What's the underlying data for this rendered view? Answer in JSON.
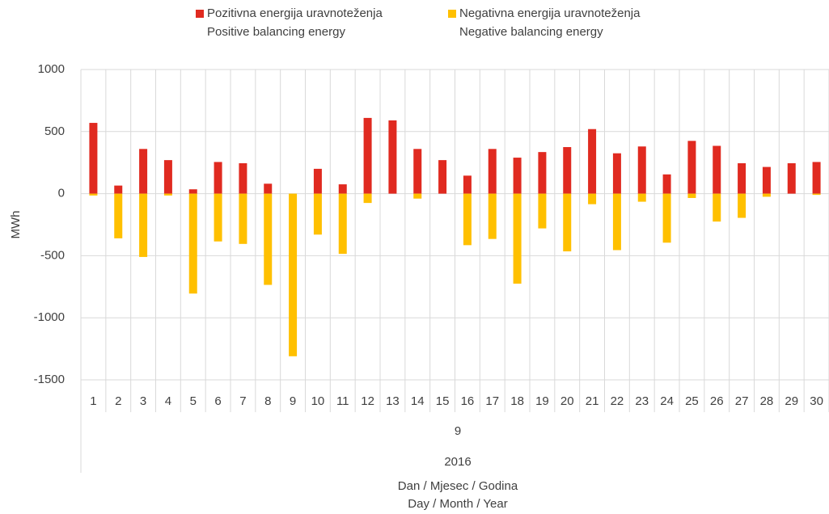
{
  "chart_data": {
    "type": "bar",
    "categories": [
      "1",
      "2",
      "3",
      "4",
      "5",
      "6",
      "7",
      "8",
      "9",
      "10",
      "11",
      "12",
      "13",
      "14",
      "15",
      "16",
      "17",
      "18",
      "19",
      "20",
      "21",
      "22",
      "23",
      "24",
      "25",
      "26",
      "27",
      "28",
      "29",
      "30"
    ],
    "month": "9",
    "year": "2016",
    "xlabel": [
      "Dan / Mjesec / Godina",
      "Day / Month / Year"
    ],
    "ylabel": "MWh",
    "series": [
      {
        "name": "Pozitivna energija uravnoteženja",
        "name_en": "Positive balancing energy",
        "color": "#e02a20",
        "values": [
          570,
          65,
          360,
          270,
          35,
          255,
          245,
          80,
          0,
          200,
          75,
          610,
          590,
          360,
          270,
          145,
          360,
          290,
          335,
          375,
          520,
          325,
          380,
          155,
          425,
          385,
          245,
          215,
          245,
          255
        ]
      },
      {
        "name": "Negativna energija uravnoteženja",
        "name_en": "Negative balancing energy",
        "color": "#ffc000",
        "values": [
          -15,
          -360,
          -510,
          -15,
          -805,
          -385,
          -405,
          -735,
          -1310,
          -330,
          -485,
          -75,
          0,
          -40,
          0,
          -415,
          -365,
          -725,
          -280,
          -465,
          -85,
          -455,
          -65,
          -395,
          -35,
          -225,
          -195,
          -25,
          0,
          -10
        ]
      }
    ],
    "ylim": [
      -1500,
      1000
    ],
    "yticks": [
      -1500,
      -1000,
      -500,
      0,
      500,
      1000
    ],
    "grid": true
  }
}
